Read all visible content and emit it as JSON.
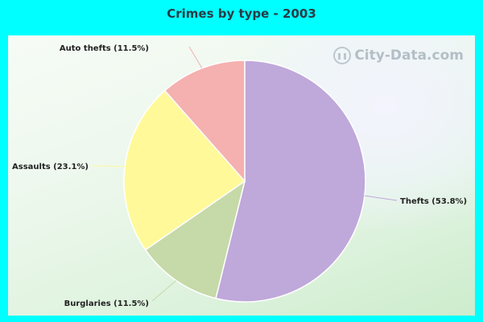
{
  "chart_data": {
    "type": "pie",
    "title": "Crimes by type - 2003",
    "slices": [
      {
        "label": "Thefts (53.8%)",
        "value": 53.8,
        "color": "#bfa8da"
      },
      {
        "label": "Burglaries (11.5%)",
        "value": 11.5,
        "color": "#c6d9a8"
      },
      {
        "label": "Assaults (23.1%)",
        "value": 23.1,
        "color": "#fff99a"
      },
      {
        "label": "Auto thefts (11.5%)",
        "value": 11.5,
        "color": "#f5b0b0"
      }
    ]
  },
  "watermark": {
    "text": "City-Data.com",
    "icon": "city-data-logo-icon"
  },
  "colors": {
    "background": "#00ffff"
  }
}
